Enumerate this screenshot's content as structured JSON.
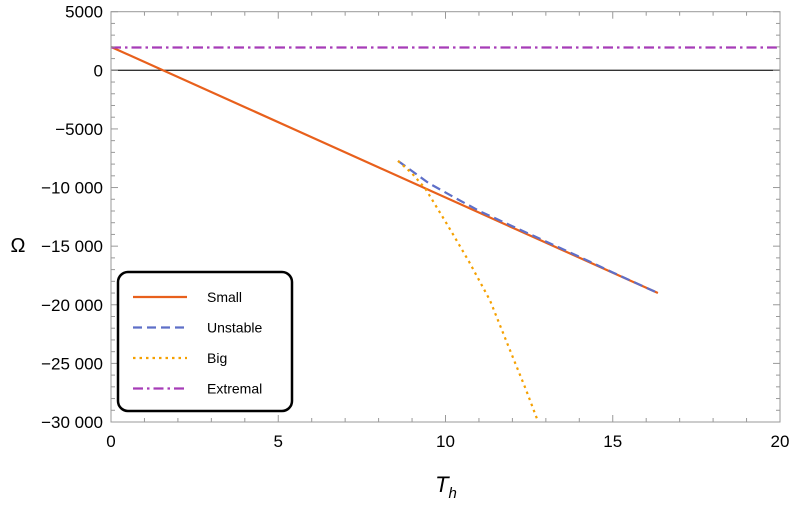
{
  "chart_data": {
    "type": "line",
    "title": "",
    "xlabel": "T",
    "xlabel_sub": "h",
    "ylabel": "Ω",
    "xlim": [
      0,
      20
    ],
    "ylim": [
      -30000,
      5000
    ],
    "x_ticks": [
      0,
      5,
      10,
      15,
      20
    ],
    "x_tick_labels": [
      "0",
      "5",
      "10",
      "15",
      "20"
    ],
    "y_ticks": [
      5000,
      0,
      -5000,
      -10000,
      -15000,
      -20000,
      -25000,
      -30000
    ],
    "y_tick_labels": [
      "5000",
      "0",
      "−5000",
      "−10 000",
      "−15 000",
      "−20 000",
      "−25 000",
      "−30 000"
    ],
    "grid": false,
    "zero_line": true,
    "legend_position": "bottom-left",
    "series": [
      {
        "name": "Small",
        "color": "#e8601c",
        "dash": "solid",
        "x": [
          0,
          4,
          8,
          12,
          16.35
        ],
        "y": [
          2000,
          -3140,
          -8280,
          -13420,
          -19000
        ]
      },
      {
        "name": "Unstable",
        "color": "#5e6fc8",
        "dash": "dashed",
        "x": [
          8.58,
          9.5,
          10.3,
          11.03,
          12,
          13,
          14,
          15,
          16.35
        ],
        "y": [
          -7730,
          -9630,
          -10900,
          -12030,
          -13300,
          -14600,
          -15900,
          -17250,
          -19000
        ]
      },
      {
        "name": "Big",
        "color": "#f5a000",
        "dash": "dotted",
        "x": [
          8.58,
          9.0,
          9.4,
          10.03,
          10.7,
          11.33,
          11.93,
          12.4,
          12.77
        ],
        "y": [
          -7730,
          -8800,
          -10100,
          -13050,
          -16300,
          -19630,
          -23900,
          -27200,
          -30000
        ]
      },
      {
        "name": "Extremal",
        "color": "#a63cb8",
        "dash": "dashdot",
        "x": [
          0,
          20
        ],
        "y": [
          1950,
          1950
        ]
      }
    ]
  }
}
